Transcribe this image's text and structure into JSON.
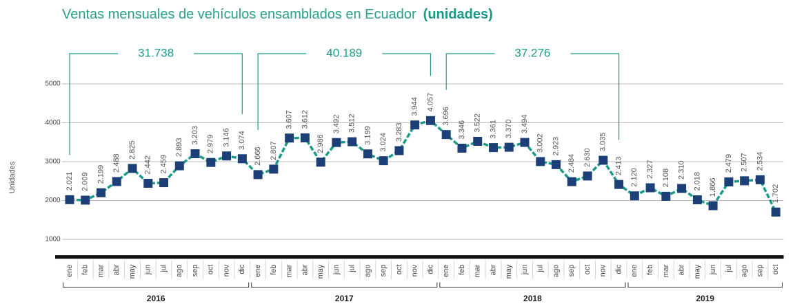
{
  "chart_data": {
    "type": "line",
    "title": "Ventas mensuales de vehículos ensamblados en Ecuador",
    "title_unit": "(unidades)",
    "y_label": "Unidades",
    "categories": [
      "ene",
      "feb",
      "mar",
      "abr",
      "may",
      "jun",
      "jul",
      "ago",
      "sep",
      "oct",
      "nov",
      "dic",
      "ene",
      "feb",
      "mar",
      "abr",
      "may",
      "jun",
      "jul",
      "ago",
      "sep",
      "oct",
      "nov",
      "dic",
      "ene",
      "feb",
      "mar",
      "abr",
      "may",
      "jun",
      "jul",
      "ago",
      "sep",
      "oct",
      "nov",
      "dic",
      "ene",
      "feb",
      "mar",
      "abr",
      "may",
      "jun",
      "jul",
      "ago",
      "sep",
      "oct"
    ],
    "groups": [
      "2016",
      "2017",
      "2018",
      "2019"
    ],
    "group_totals": [
      "31.738",
      "40.189",
      "37.276"
    ],
    "series": [
      {
        "name": "Ventas",
        "color": "#1a9a88",
        "marker_color": "#1d3f78",
        "values": [
          2021,
          2009,
          2199,
          2488,
          2825,
          2442,
          2459,
          2893,
          3203,
          2979,
          3146,
          3074,
          2666,
          2807,
          3607,
          3612,
          2986,
          3492,
          3512,
          3199,
          3024,
          3283,
          3944,
          4057,
          3696,
          3346,
          3522,
          3361,
          3370,
          3494,
          3002,
          2923,
          2484,
          2630,
          3035,
          2413,
          2120,
          2327,
          2108,
          2310,
          2018,
          1866,
          2479,
          2507,
          2534,
          1702
        ],
        "value_labels": [
          "2.021",
          "2.009",
          "2.199",
          "2.488",
          "2.825",
          "2.442",
          "2.459",
          "2.893",
          "3.203",
          "2.979",
          "3.146",
          "3.074",
          "2.666",
          "2.807",
          "3.607",
          "3.612",
          "2.986",
          "3.492",
          "3.512",
          "3.199",
          "3.024",
          "3.283",
          "3.944",
          "4.057",
          "3.696",
          "3.346",
          "3.522",
          "3.361",
          "3.370",
          "3.494",
          "3.002",
          "2.923",
          "2.484",
          "2.630",
          "3.035",
          "2.413",
          "2.120",
          "2.327",
          "2.108",
          "2.310",
          "2.018",
          "1.866",
          "2.479",
          "2.507",
          "2.534",
          "1.702"
        ]
      }
    ],
    "ylim": [
      600,
      5400
    ],
    "yticks": [
      1000,
      2000,
      3000,
      4000,
      5000
    ],
    "grid": true
  }
}
